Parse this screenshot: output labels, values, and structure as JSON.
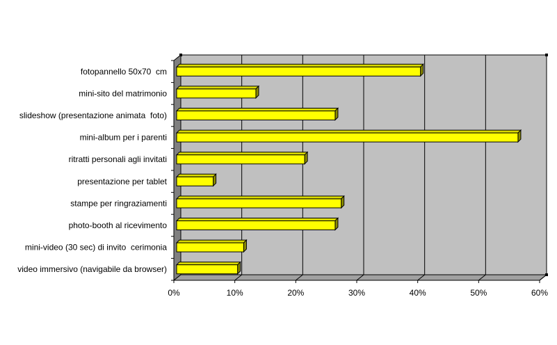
{
  "chart_data": {
    "type": "bar",
    "orientation": "horizontal",
    "style": "3d",
    "categories": [
      "fotopannello 50x70  cm",
      "mini-sito del matrimonio",
      "slideshow (presentazione animata  foto)",
      "mini-album per i parenti",
      "ritratti personali agli invitati",
      "presentazione per tablet",
      "stampe per ringraziamenti",
      "photo-booth al ricevimento",
      "mini-video (30 sec) di invito  cerimonia",
      "video immersivo (navigabile da browser)"
    ],
    "values": [
      40,
      13,
      26,
      56,
      21,
      6,
      27,
      26,
      11,
      10
    ],
    "xlim": [
      0,
      60
    ],
    "ticks": [
      0,
      10,
      20,
      30,
      40,
      50,
      60
    ],
    "tick_labels": [
      "0%",
      "10%",
      "20%",
      "30%",
      "40%",
      "50%",
      "60%"
    ],
    "grid": true,
    "legend": "none",
    "colors": {
      "bar_front": "#ffff00",
      "bar_top": "#d9d900",
      "bar_side": "#8c8c00",
      "plot_bg": "#c0c0c0",
      "wall_side": "#808080",
      "gridline": "#000000"
    }
  }
}
